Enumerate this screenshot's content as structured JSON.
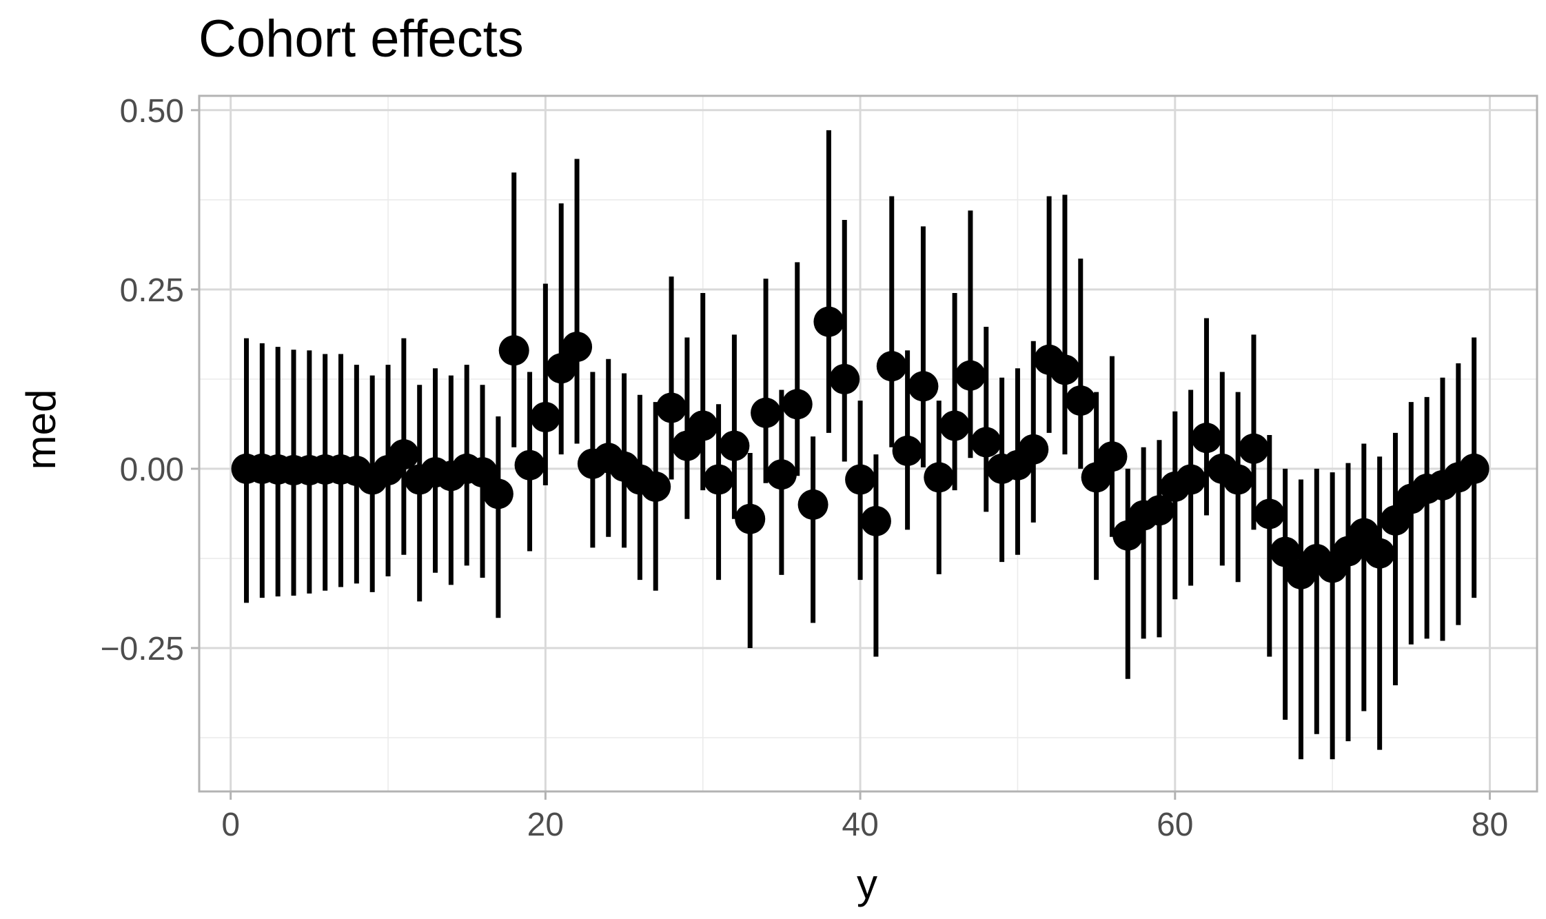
{
  "chart_data": {
    "type": "scatter",
    "title": "Cohort effects",
    "xlabel": "y",
    "ylabel": "med",
    "xlim": [
      -2,
      83
    ],
    "ylim": [
      -0.45,
      0.52
    ],
    "x_ticks": [
      0,
      20,
      40,
      60,
      80
    ],
    "x_tick_labels": [
      "0",
      "20",
      "40",
      "60",
      "80"
    ],
    "y_ticks": [
      -0.25,
      0,
      0.25,
      0.5
    ],
    "y_tick_labels": [
      "−0.25",
      "0.00",
      "0.25",
      "0.50"
    ],
    "y_minor_ticks": [
      -0.375,
      -0.125,
      0.125,
      0.375
    ],
    "x_minor_ticks": [
      10,
      30,
      50,
      70
    ],
    "grid": true,
    "legend": "none",
    "colors": {
      "point": "#000000",
      "grid": "#d9d9d9",
      "border": "#b3b3b3",
      "tick_text": "#4d4d4d"
    },
    "series": [
      {
        "x": [
          1,
          2,
          3,
          4,
          5,
          6,
          7,
          8,
          9,
          10,
          11,
          12,
          13,
          14,
          15,
          16,
          17,
          18,
          19,
          20,
          21,
          22,
          23,
          24,
          25,
          26,
          27,
          28,
          29,
          30,
          31,
          32,
          33,
          34,
          35,
          36,
          37,
          38,
          39,
          40,
          41,
          42,
          43,
          44,
          45,
          46,
          47,
          48,
          49,
          50,
          51,
          52,
          53,
          54,
          55,
          56,
          57,
          58,
          59,
          60,
          61,
          62,
          63,
          64,
          65,
          66,
          67,
          68,
          69,
          70,
          71,
          72,
          73,
          74,
          75,
          76,
          77,
          78,
          79
        ],
        "med": [
          0.0,
          0.0,
          -0.001,
          -0.002,
          -0.002,
          -0.001,
          -0.001,
          -0.003,
          -0.015,
          -0.002,
          0.02,
          -0.015,
          -0.005,
          -0.01,
          0.0,
          -0.005,
          -0.035,
          0.165,
          0.005,
          0.072,
          0.14,
          0.17,
          0.007,
          0.015,
          0.003,
          -0.015,
          -0.025,
          0.085,
          0.032,
          0.06,
          -0.015,
          0.032,
          -0.07,
          0.078,
          -0.008,
          0.09,
          -0.05,
          0.205,
          0.125,
          -0.015,
          -0.073,
          0.143,
          0.025,
          0.115,
          -0.012,
          0.06,
          0.13,
          0.037,
          0.0,
          0.005,
          0.027,
          0.152,
          0.138,
          0.095,
          -0.012,
          0.017,
          -0.093,
          -0.065,
          -0.058,
          -0.025,
          -0.015,
          0.043,
          0.0,
          -0.015,
          0.028,
          -0.063,
          -0.116,
          -0.147,
          -0.126,
          -0.138,
          -0.115,
          -0.09,
          -0.118,
          -0.072,
          -0.042,
          -0.028,
          -0.023,
          -0.012,
          0.0
        ],
        "lower": [
          -0.187,
          -0.18,
          -0.178,
          -0.177,
          -0.174,
          -0.17,
          -0.165,
          -0.16,
          -0.172,
          -0.15,
          -0.12,
          -0.185,
          -0.145,
          -0.162,
          -0.135,
          -0.152,
          -0.208,
          0.03,
          -0.115,
          -0.023,
          0.02,
          0.035,
          -0.11,
          -0.095,
          -0.11,
          -0.155,
          -0.17,
          -0.015,
          -0.07,
          -0.03,
          -0.155,
          -0.07,
          -0.25,
          -0.02,
          -0.148,
          -0.01,
          -0.215,
          0.05,
          0.01,
          -0.155,
          -0.262,
          0.03,
          -0.085,
          0.002,
          -0.147,
          -0.03,
          0.015,
          -0.06,
          -0.13,
          -0.12,
          -0.075,
          0.05,
          0.02,
          0.0,
          -0.155,
          -0.095,
          -0.293,
          -0.237,
          -0.235,
          -0.182,
          -0.163,
          -0.065,
          -0.135,
          -0.158,
          -0.085,
          -0.262,
          -0.35,
          -0.405,
          -0.37,
          -0.405,
          -0.38,
          -0.338,
          -0.392,
          -0.302,
          -0.245,
          -0.237,
          -0.24,
          -0.218,
          -0.18
        ],
        "upper": [
          0.182,
          0.175,
          0.17,
          0.166,
          0.165,
          0.16,
          0.16,
          0.145,
          0.13,
          0.145,
          0.182,
          0.117,
          0.14,
          0.13,
          0.145,
          0.117,
          0.073,
          0.413,
          0.135,
          0.258,
          0.37,
          0.432,
          0.135,
          0.153,
          0.133,
          0.103,
          0.093,
          0.268,
          0.183,
          0.245,
          0.09,
          0.187,
          0.022,
          0.265,
          0.11,
          0.288,
          0.045,
          0.472,
          0.347,
          0.095,
          0.02,
          0.38,
          0.165,
          0.338,
          0.095,
          0.245,
          0.36,
          0.198,
          0.127,
          0.14,
          0.178,
          0.38,
          0.382,
          0.293,
          0.107,
          0.157,
          0.0,
          0.03,
          0.04,
          0.08,
          0.11,
          0.21,
          0.135,
          0.107,
          0.187,
          0.047,
          0.0,
          -0.015,
          0.0,
          -0.005,
          0.008,
          0.035,
          0.017,
          0.05,
          0.093,
          0.1,
          0.127,
          0.147,
          0.183
        ]
      }
    ]
  }
}
